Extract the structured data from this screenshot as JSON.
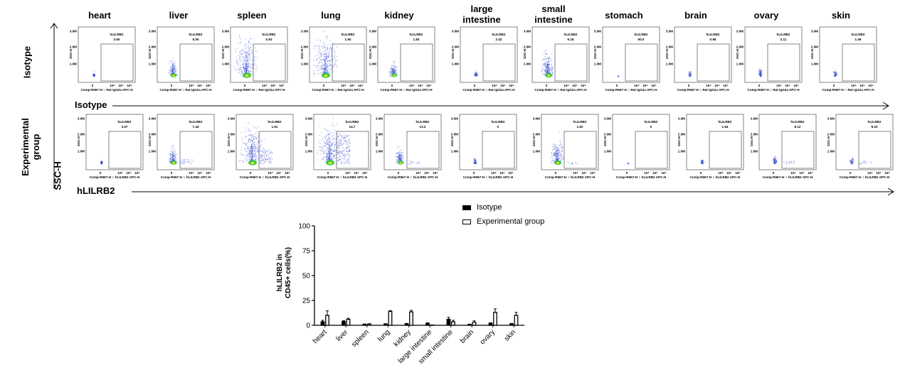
{
  "tissues": [
    "heart",
    "liver",
    "spleen",
    "lung",
    "kidney",
    "large\nintestine",
    "small\nintestine",
    "stomach",
    "brain",
    "ovary",
    "skin"
  ],
  "row_labels": {
    "isotype": "Isotype",
    "experimental": "Experimental\ngroup"
  },
  "axis_labels": {
    "ssc": "SSC-H",
    "isotype_axis": "Isotype",
    "hlilrb2_axis": "hLILRB2"
  },
  "flow_panels": {
    "gate_label": "hLILRB2",
    "y_ticks": [
      "3.0M",
      "2.0M",
      "1.0M",
      "0"
    ],
    "x_ticks": [
      "0",
      "10⁴",
      "10⁵",
      "10⁶"
    ],
    "y_axis_label": "SSC-H",
    "isotype_xlabel": "Comp-R667-H :: Rat IgG2a APC-H",
    "experimental_xlabel": "Comp-R667-H :: hLILRB2 APC-H",
    "isotype_values": [
      "3.60",
      "5.05",
      "0.92",
      "1.50",
      "1.83",
      "2.42",
      "6.18",
      "50.0",
      "0.98",
      "2.11",
      "1.59"
    ],
    "experimental_values": [
      "3.57",
      "7.44",
      "1.51",
      "14.7",
      "13.2",
      "0",
      "1.92",
      "0",
      "1.64",
      "8.12",
      "8.33"
    ]
  },
  "colors": {
    "isotype": "#000000",
    "experimental": "#ffffff",
    "dots": "#2a3fd1"
  },
  "chart_data": {
    "type": "bar",
    "ylabel": "hLILRB2 in\nCD45+ cells(%)",
    "ylim": [
      0,
      100
    ],
    "yticks": [
      0,
      25,
      50,
      75,
      100
    ],
    "legend_position": "top",
    "categories": [
      "heart",
      "liver",
      "spleen",
      "lung",
      "kidney",
      "large intestine",
      "small intestine",
      "brain",
      "ovary",
      "skin"
    ],
    "series": [
      {
        "name": "Isotype",
        "values": [
          3.5,
          3.8,
          1.0,
          1.3,
          1.5,
          2.0,
          6.0,
          0.9,
          2.0,
          1.5
        ],
        "errors": [
          1.5,
          0.8,
          0.3,
          0.3,
          0.4,
          0.5,
          2.0,
          0.3,
          0.5,
          0.4
        ]
      },
      {
        "name": "Experimental group",
        "values": [
          10.0,
          6.0,
          1.3,
          14.0,
          13.5,
          0.2,
          3.5,
          3.0,
          13.0,
          10.0
        ],
        "errors": [
          4.5,
          1.0,
          0.3,
          0.8,
          1.5,
          0.2,
          1.5,
          1.5,
          3.5,
          3.0
        ]
      }
    ]
  }
}
